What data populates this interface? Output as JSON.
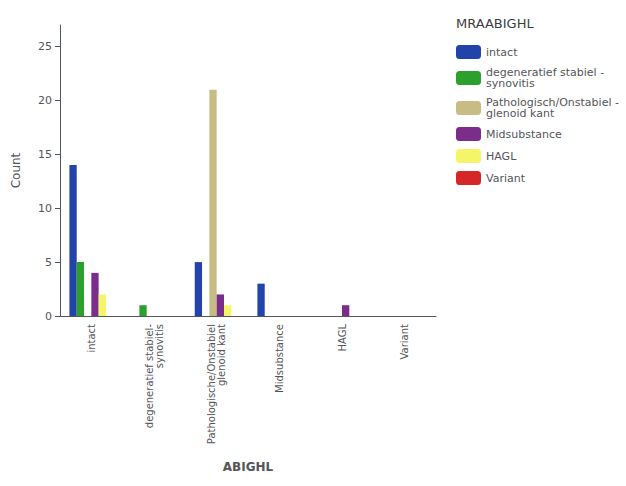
{
  "chart_data": {
    "type": "bar",
    "title": "MRAABIGHL",
    "xlabel": "ABIGHL",
    "ylabel": "Count",
    "categories": [
      "intact",
      "degeneratief stabiel-\nsynovitis",
      "Pathologische/Onstabiel\nglenoid kant",
      "Midsubstance",
      "HAGL",
      "Variant"
    ],
    "series": [
      {
        "name": "intact",
        "color": "#2244aa",
        "values": [
          14,
          0,
          5,
          3,
          0,
          0
        ]
      },
      {
        "name": "degeneratief stabiel -\nsynovitis",
        "color": "#2ca02c",
        "values": [
          5,
          1,
          0,
          0,
          0,
          0
        ]
      },
      {
        "name": "Pathologisch/Onstabiel -\nglenoid kant",
        "color": "#c8bc85",
        "values": [
          0,
          0,
          21,
          0,
          0,
          0
        ]
      },
      {
        "name": "Midsubstance",
        "color": "#7b2d8b",
        "values": [
          4,
          0,
          2,
          0,
          1,
          0
        ]
      },
      {
        "name": "HAGL",
        "color": "#f5f56a",
        "values": [
          2,
          0,
          1,
          0,
          0,
          0
        ]
      },
      {
        "name": "Variant",
        "color": "#d62728",
        "values": [
          0,
          0,
          0,
          0,
          0,
          0
        ]
      }
    ],
    "ylim": [
      0,
      27
    ],
    "yticks": [
      0,
      5,
      10,
      15,
      20,
      25
    ],
    "grid": false,
    "legend": "right"
  }
}
